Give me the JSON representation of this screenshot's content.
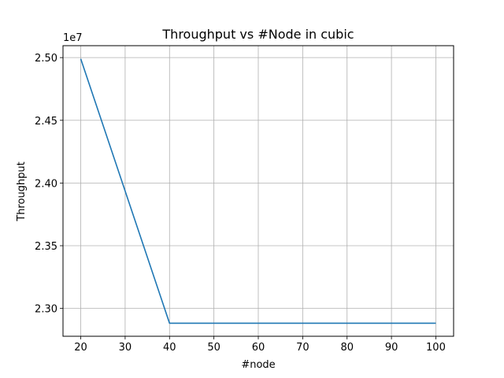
{
  "chart_data": {
    "type": "line",
    "title": "Throughput vs #Node in cubic",
    "xlabel": "#node",
    "ylabel": "Throughput",
    "y_scale_label": "1e7",
    "x": [
      20,
      40,
      60,
      80,
      100
    ],
    "series": [
      {
        "values": [
          24990000,
          22882000,
          22882000,
          22882000,
          22882000
        ],
        "color": "#1f77b4"
      }
    ],
    "xlim": [
      16,
      104
    ],
    "ylim": [
      22778000,
      25095000
    ],
    "x_ticks": [
      20,
      30,
      40,
      50,
      60,
      70,
      80,
      90,
      100
    ],
    "x_tick_labels": [
      "20",
      "30",
      "40",
      "50",
      "60",
      "70",
      "80",
      "90",
      "100"
    ],
    "y_ticks": [
      23000000,
      23500000,
      24000000,
      24500000,
      25000000
    ],
    "y_tick_labels": [
      "2.30",
      "2.35",
      "2.40",
      "2.45",
      "2.50"
    ],
    "grid": true,
    "legend": "none"
  },
  "colors": {
    "line": "#1f77b4",
    "grid": "#b0b0b0",
    "axes": "#000000",
    "background": "#ffffff"
  }
}
